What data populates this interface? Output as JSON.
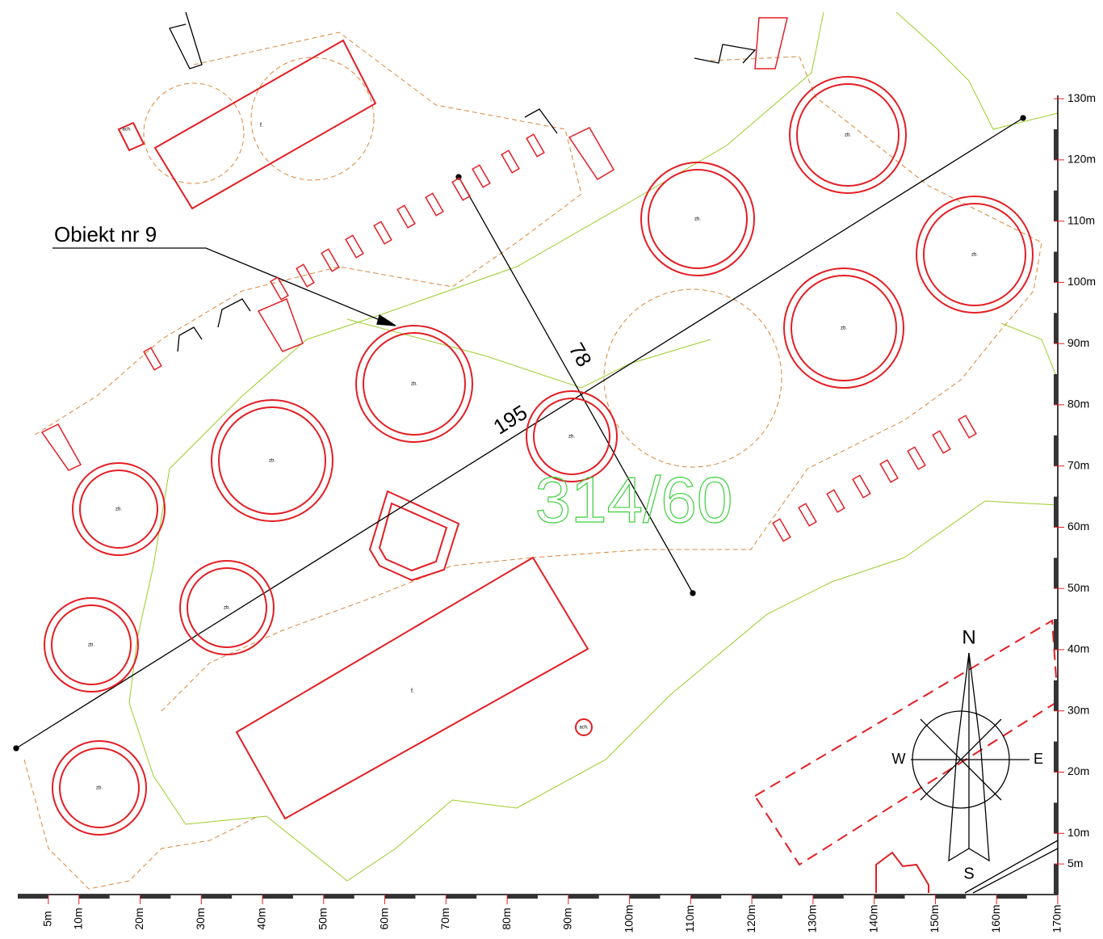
{
  "annotation": {
    "object_label": "Obiekt nr 9",
    "length": "195",
    "width": "78",
    "parcel": "314/60"
  },
  "compass": {
    "north": "N",
    "south": "S",
    "west": "W",
    "east": "E"
  },
  "tree_label": "zb.",
  "building_labels": {
    "garage": "f.",
    "pit": "ach.",
    "shed": "ach."
  },
  "scale": {
    "x_ticks": [
      {
        "value": 5,
        "label": "5m"
      },
      {
        "value": 10,
        "label": "10m"
      },
      {
        "value": 20,
        "label": "20m"
      },
      {
        "value": 30,
        "label": "30m"
      },
      {
        "value": 40,
        "label": "40m"
      },
      {
        "value": 50,
        "label": "50m"
      },
      {
        "value": 60,
        "label": "60m"
      },
      {
        "value": 70,
        "label": "70m"
      },
      {
        "value": 80,
        "label": "80m"
      },
      {
        "value": 90,
        "label": "90m"
      },
      {
        "value": 100,
        "label": "100m"
      },
      {
        "value": 110,
        "label": "110m"
      },
      {
        "value": 120,
        "label": "120m"
      },
      {
        "value": 130,
        "label": "130m"
      },
      {
        "value": 140,
        "label": "140m"
      },
      {
        "value": 150,
        "label": "150m"
      },
      {
        "value": 160,
        "label": "160m"
      },
      {
        "value": 170,
        "label": "170m"
      }
    ],
    "y_ticks": [
      {
        "value": 5,
        "label": "5m"
      },
      {
        "value": 10,
        "label": "10m"
      },
      {
        "value": 20,
        "label": "20m"
      },
      {
        "value": 30,
        "label": "30m"
      },
      {
        "value": 40,
        "label": "40m"
      },
      {
        "value": 50,
        "label": "50m"
      },
      {
        "value": 60,
        "label": "60m"
      },
      {
        "value": 70,
        "label": "70m"
      },
      {
        "value": 80,
        "label": "80m"
      },
      {
        "value": 90,
        "label": "90m"
      },
      {
        "value": 100,
        "label": "100m"
      },
      {
        "value": 110,
        "label": "110m"
      },
      {
        "value": 120,
        "label": "120m"
      },
      {
        "value": 130,
        "label": "130m"
      }
    ]
  }
}
